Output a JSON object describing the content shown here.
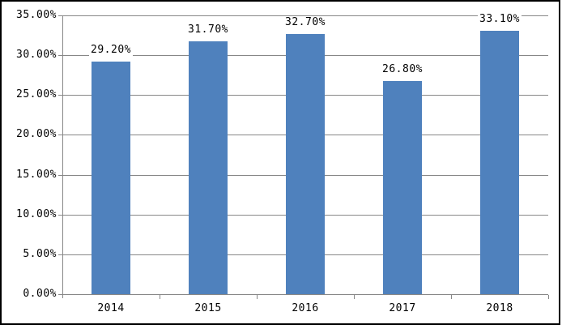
{
  "window": {
    "background": "#ffffff",
    "frame_border_color": "#000000"
  },
  "chart_data": {
    "type": "bar",
    "title": "",
    "xlabel": "",
    "ylabel": "",
    "categories": [
      "2014",
      "2015",
      "2016",
      "2017",
      "2018"
    ],
    "values": [
      29.2,
      31.7,
      32.7,
      26.8,
      33.1
    ],
    "data_labels": [
      "29.20%",
      "31.70%",
      "32.70%",
      "26.80%",
      "33.10%"
    ],
    "ylim": [
      0,
      35
    ],
    "ytick_step": 5,
    "ytick_labels": [
      "0.00%",
      "5.00%",
      "10.00%",
      "15.00%",
      "20.00%",
      "25.00%",
      "30.00%",
      "35.00%"
    ],
    "grid": true,
    "legend": false,
    "bar_color": "#4F81BD",
    "gridline_color": "#878787",
    "axis_color": "#878787",
    "text_color": "#000000",
    "data_label_background": "#ffffff"
  }
}
